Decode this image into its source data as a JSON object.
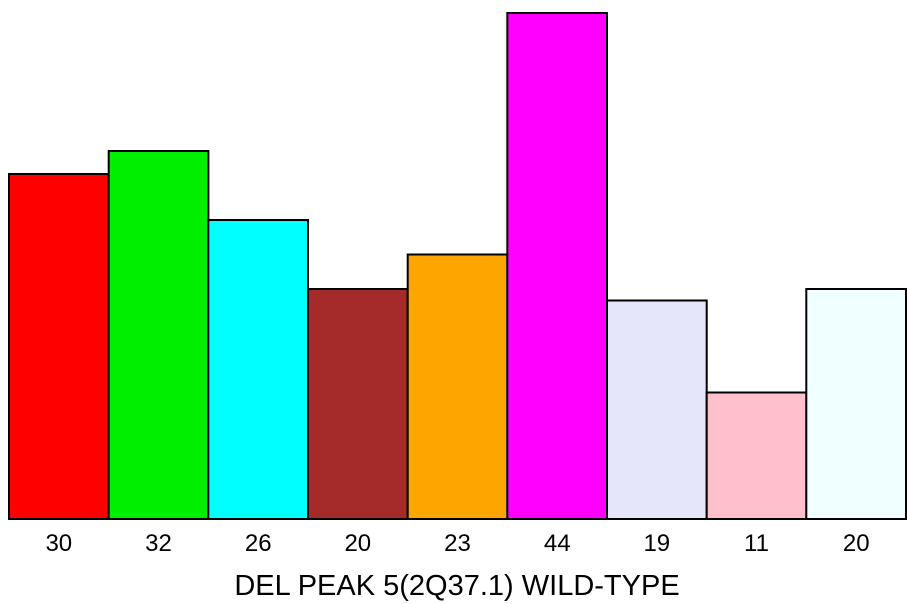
{
  "chart_data": {
    "type": "bar",
    "categories": [
      "30",
      "32",
      "26",
      "20",
      "23",
      "44",
      "19",
      "11",
      "20"
    ],
    "values": [
      30,
      32,
      26,
      20,
      23,
      44,
      19,
      11,
      20
    ],
    "colors": [
      "#ff0000",
      "#00ee00",
      "#00ffff",
      "#a52a2a",
      "#ffa500",
      "#ff00ff",
      "#e6e6fa",
      "#ffc0cb",
      "#f0ffff"
    ],
    "xlabel": "DEL PEAK  5(2Q37.1) WILD-TYPE",
    "ylabel": "",
    "ylim": [
      0,
      44
    ],
    "grid": false,
    "legend": "none"
  }
}
